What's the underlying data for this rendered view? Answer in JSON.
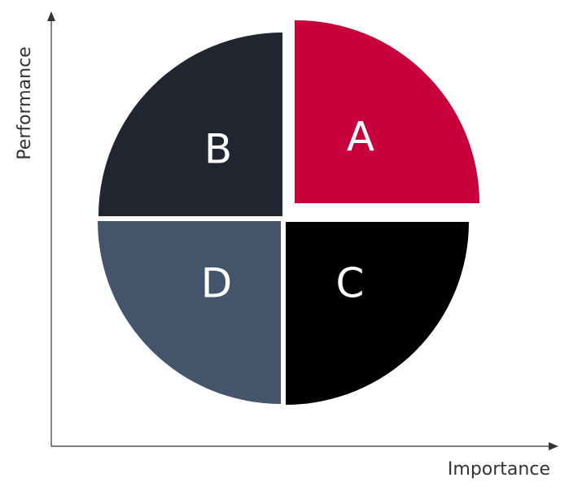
{
  "axes": {
    "x_label": "Importance",
    "y_label": "Performance"
  },
  "quadrants": [
    {
      "id": "A",
      "label": "A",
      "position": "top-right",
      "color": "#C8003C"
    },
    {
      "id": "B",
      "label": "B",
      "position": "top-left",
      "color": "#21252F"
    },
    {
      "id": "C",
      "label": "C",
      "position": "bottom-right",
      "color": "#000000"
    },
    {
      "id": "D",
      "label": "D",
      "position": "bottom-left",
      "color": "#44546A"
    }
  ],
  "axis_color": "#333333"
}
